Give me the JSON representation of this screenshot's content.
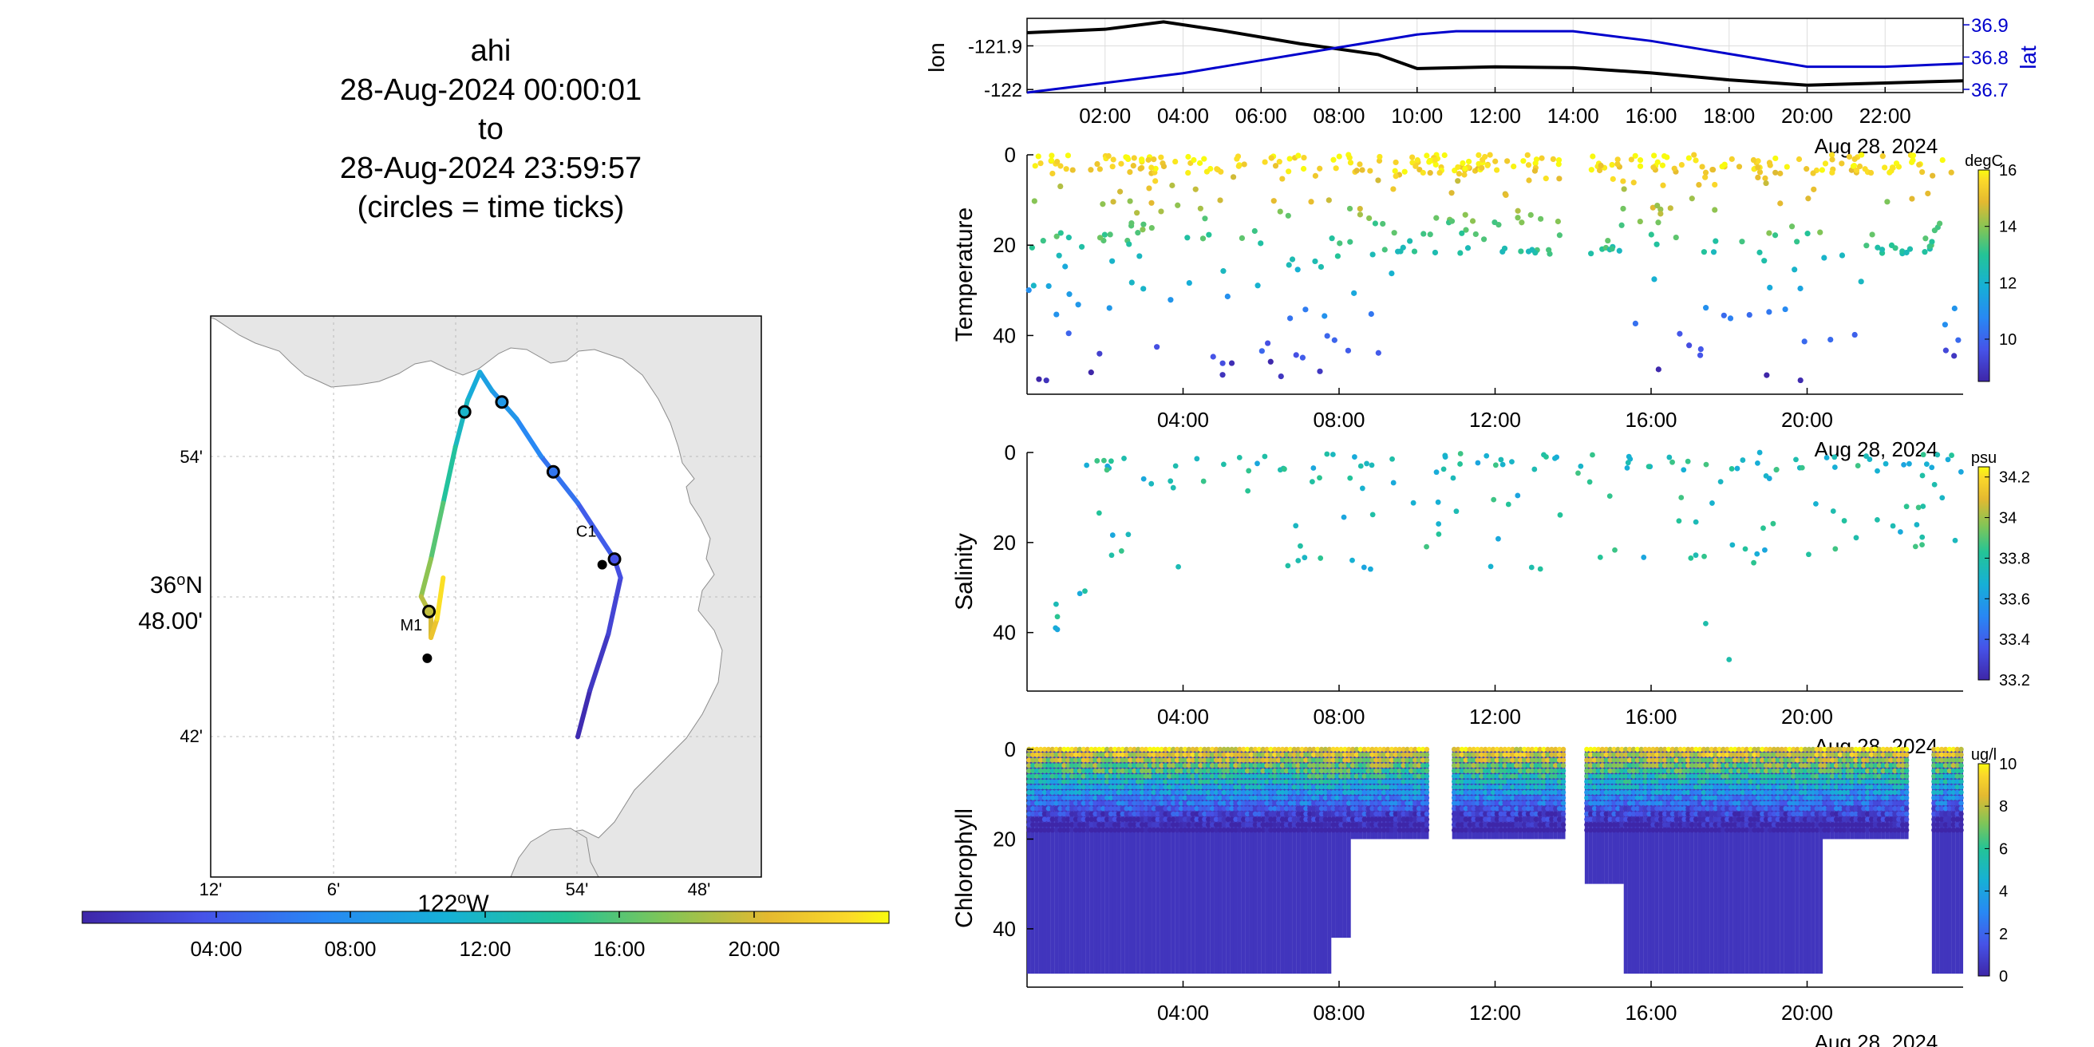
{
  "title": {
    "lines": [
      "ahi",
      "28-Aug-2024 00:00:01",
      "to",
      "28-Aug-2024 23:59:57",
      "(circles = time ticks)"
    ]
  },
  "colors": {
    "lon_line": "#000000",
    "lat_line": "#0000cc",
    "land": "#e6e6e6",
    "grid": "#bbbbbb",
    "colormap": "parula"
  },
  "map": {
    "lon_ticks": [
      "12'",
      "6'",
      "54'",
      "48'"
    ],
    "lon_label_deg": "122",
    "lon_label_suffix": "W",
    "lat_ticks": [
      "54'",
      "42'"
    ],
    "lat_label_deg": "36",
    "lat_label_suffix": "N",
    "lat_label_min": "48.00'",
    "stations": [
      {
        "name": "M1",
        "lon": -122.023,
        "lat": 36.747
      },
      {
        "name": "C1",
        "lon": -121.88,
        "lat": 36.797
      }
    ]
  },
  "map_colorbar": {
    "ticks": [
      "04:00",
      "08:00",
      "12:00",
      "16:00",
      "20:00"
    ]
  },
  "chart_data": [
    {
      "type": "line",
      "name": "lon-lat",
      "ylabel": "lon",
      "ylabel_right": "lat",
      "x_ticks": [
        "02:00",
        "04:00",
        "06:00",
        "08:00",
        "10:00",
        "12:00",
        "14:00",
        "16:00",
        "18:00",
        "20:00",
        "22:00"
      ],
      "x_date_label": "Aug 28, 2024",
      "xlim": [
        0,
        24
      ],
      "ylim_left": [
        -122.007,
        -121.837
      ],
      "yticks_left": [
        "-121.9",
        "-122"
      ],
      "ylim_right": [
        36.69,
        36.92
      ],
      "yticks_right": [
        "36.9",
        "36.8",
        "36.7"
      ],
      "series": [
        {
          "name": "lon",
          "axis": "left",
          "x": [
            0,
            2,
            3.5,
            5,
            7,
            9,
            10,
            12,
            14,
            16,
            18,
            20,
            22,
            24
          ],
          "values": [
            -121.87,
            -121.862,
            -121.845,
            -121.865,
            -121.895,
            -121.92,
            -121.952,
            -121.948,
            -121.95,
            -121.962,
            -121.978,
            -121.99,
            -121.985,
            -121.98
          ]
        },
        {
          "name": "lat",
          "axis": "right",
          "x": [
            0,
            2,
            4,
            6,
            8,
            10,
            11,
            12,
            13,
            14,
            16,
            18,
            20,
            22,
            24
          ],
          "values": [
            36.69,
            36.72,
            36.75,
            36.79,
            36.83,
            36.87,
            36.88,
            36.88,
            36.88,
            36.88,
            36.85,
            36.81,
            36.77,
            36.77,
            36.78
          ]
        }
      ]
    },
    {
      "type": "scatter",
      "ylabel": "Temperature",
      "x_ticks": [
        "04:00",
        "08:00",
        "12:00",
        "16:00",
        "20:00"
      ],
      "x_date_label": "Aug 28, 2024",
      "xlim": [
        0,
        24
      ],
      "ylim": [
        0,
        53
      ],
      "yticks": [
        "0",
        "20",
        "40"
      ],
      "yreversed": true,
      "colorbar": {
        "unit": "degC",
        "ticks": [
          "10",
          "12",
          "14",
          "16"
        ],
        "range": [
          8.5,
          16
        ]
      }
    },
    {
      "type": "scatter",
      "ylabel": "Salinity",
      "x_ticks": [
        "04:00",
        "08:00",
        "12:00",
        "16:00",
        "20:00"
      ],
      "x_date_label": "Aug 28, 2024",
      "xlim": [
        0,
        24
      ],
      "ylim": [
        0,
        53
      ],
      "yticks": [
        "0",
        "20",
        "40"
      ],
      "yreversed": true,
      "colorbar": {
        "unit": "psu",
        "ticks": [
          "33.2",
          "33.4",
          "33.6",
          "33.8",
          "34",
          "34.2"
        ],
        "range": [
          33.2,
          34.25
        ]
      }
    },
    {
      "type": "scatter",
      "ylabel": "Chlorophyll",
      "x_ticks": [
        "04:00",
        "08:00",
        "12:00",
        "16:00",
        "20:00"
      ],
      "x_date_label": "Aug 28, 2024",
      "xlim": [
        0,
        24
      ],
      "ylim": [
        0,
        53
      ],
      "yticks": [
        "0",
        "20",
        "40"
      ],
      "yreversed": true,
      "colorbar": {
        "unit": "ug/l",
        "ticks": [
          "0",
          "2",
          "4",
          "6",
          "8",
          "10"
        ],
        "range": [
          0,
          10
        ]
      }
    }
  ]
}
